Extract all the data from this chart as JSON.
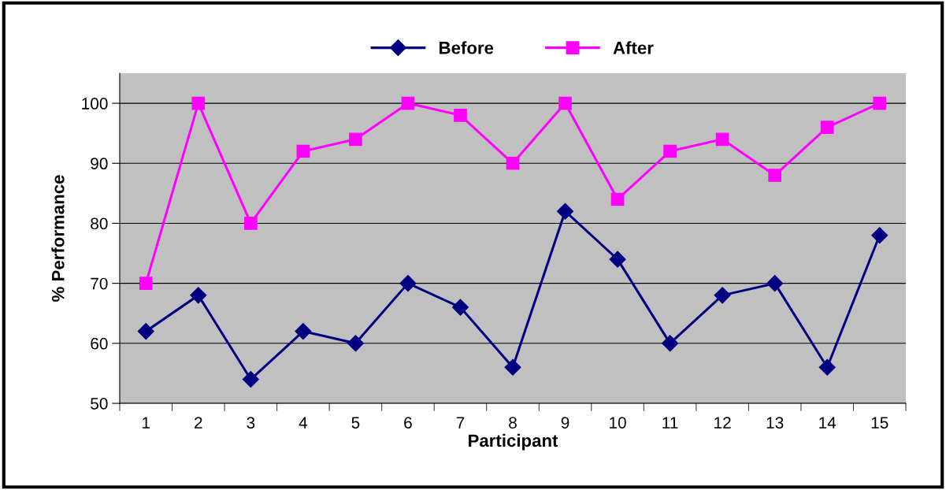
{
  "chart_data": {
    "type": "line",
    "xlabel": "Participant",
    "ylabel": "% Performance",
    "categories": [
      "1",
      "2",
      "3",
      "4",
      "5",
      "6",
      "7",
      "8",
      "9",
      "10",
      "11",
      "12",
      "13",
      "14",
      "15"
    ],
    "series": [
      {
        "name": "Before",
        "color": "#000080",
        "marker": "diamond",
        "values": [
          62,
          68,
          54,
          62,
          60,
          70,
          66,
          56,
          82,
          74,
          60,
          68,
          70,
          56,
          78
        ]
      },
      {
        "name": "After",
        "color": "#ff00ff",
        "marker": "square",
        "values": [
          70,
          100,
          80,
          92,
          94,
          100,
          98,
          90,
          100,
          84,
          92,
          94,
          88,
          96,
          100
        ]
      }
    ],
    "ylim": [
      50,
      105
    ],
    "yticks": [
      50,
      60,
      70,
      80,
      90,
      100
    ],
    "grid": "y",
    "legend": "top",
    "line_style": "solid"
  }
}
